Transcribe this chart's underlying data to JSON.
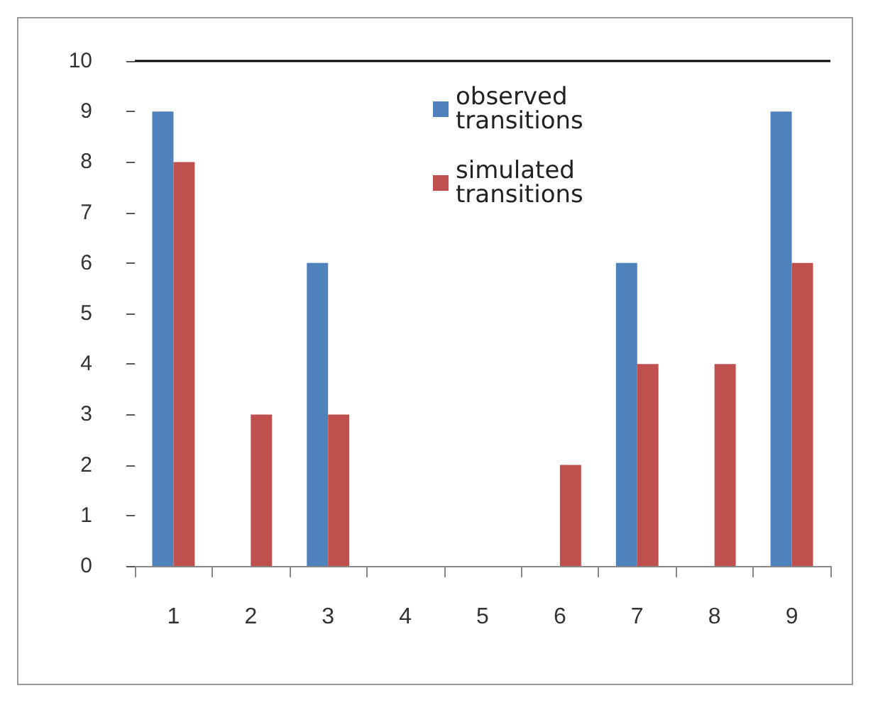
{
  "chart_data": {
    "type": "bar",
    "categories": [
      "1",
      "2",
      "3",
      "4",
      "5",
      "6",
      "7",
      "8",
      "9"
    ],
    "series": [
      {
        "name": "observed transitions",
        "color": "#4f81bd",
        "values": [
          9,
          0,
          6,
          0,
          0,
          0,
          6,
          0,
          9
        ]
      },
      {
        "name": "simulated transitions",
        "color": "#c0504d",
        "values": [
          8,
          3,
          3,
          0,
          0,
          2,
          4,
          4,
          6
        ]
      }
    ],
    "ylim": [
      0,
      10
    ],
    "yticks": [
      0,
      1,
      2,
      3,
      4,
      5,
      6,
      7,
      8,
      9,
      10
    ],
    "ref_lines": [
      {
        "axis": "y",
        "value": 10,
        "label": null,
        "color": "#000000"
      }
    ],
    "grid": false,
    "legend": "top"
  }
}
